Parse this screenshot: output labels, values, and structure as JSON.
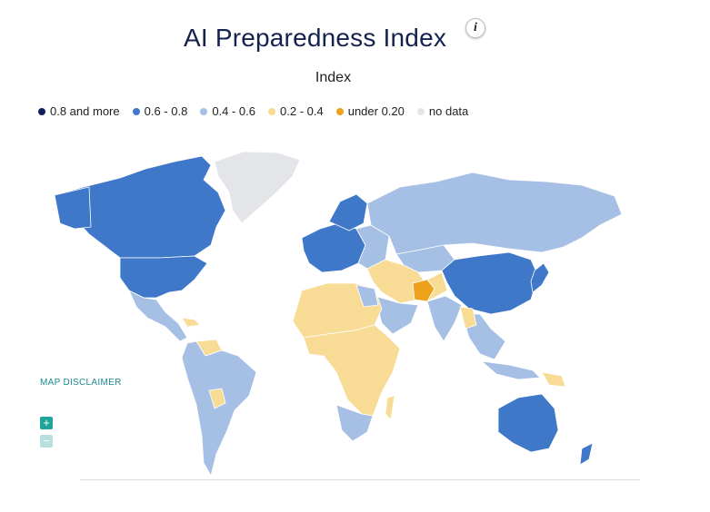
{
  "header": {
    "title": "AI Preparedness Index",
    "info_icon": "i",
    "subtitle": "Index"
  },
  "legend": [
    {
      "label": "0.8 and more",
      "color": "#0f1f5c"
    },
    {
      "label": "0.6 - 0.8",
      "color": "#3f78c9"
    },
    {
      "label": "0.4 - 0.6",
      "color": "#a6bfe4"
    },
    {
      "label": "0.2 - 0.4",
      "color": "#f8db95"
    },
    {
      "label": "under 0.20",
      "color": "#eea11a"
    },
    {
      "label": "no data",
      "color": "#e3e5e8"
    }
  ],
  "map": {
    "disclaimer_label": "MAP DISCLAIMER",
    "zoom_in_icon": "+",
    "zoom_out_icon": "−",
    "colors": {
      "high": "#3f78c9",
      "mid": "#a6bfe4",
      "low": "#f8db95",
      "very_low": "#eea11a",
      "no_data": "#e3e5e8"
    }
  }
}
